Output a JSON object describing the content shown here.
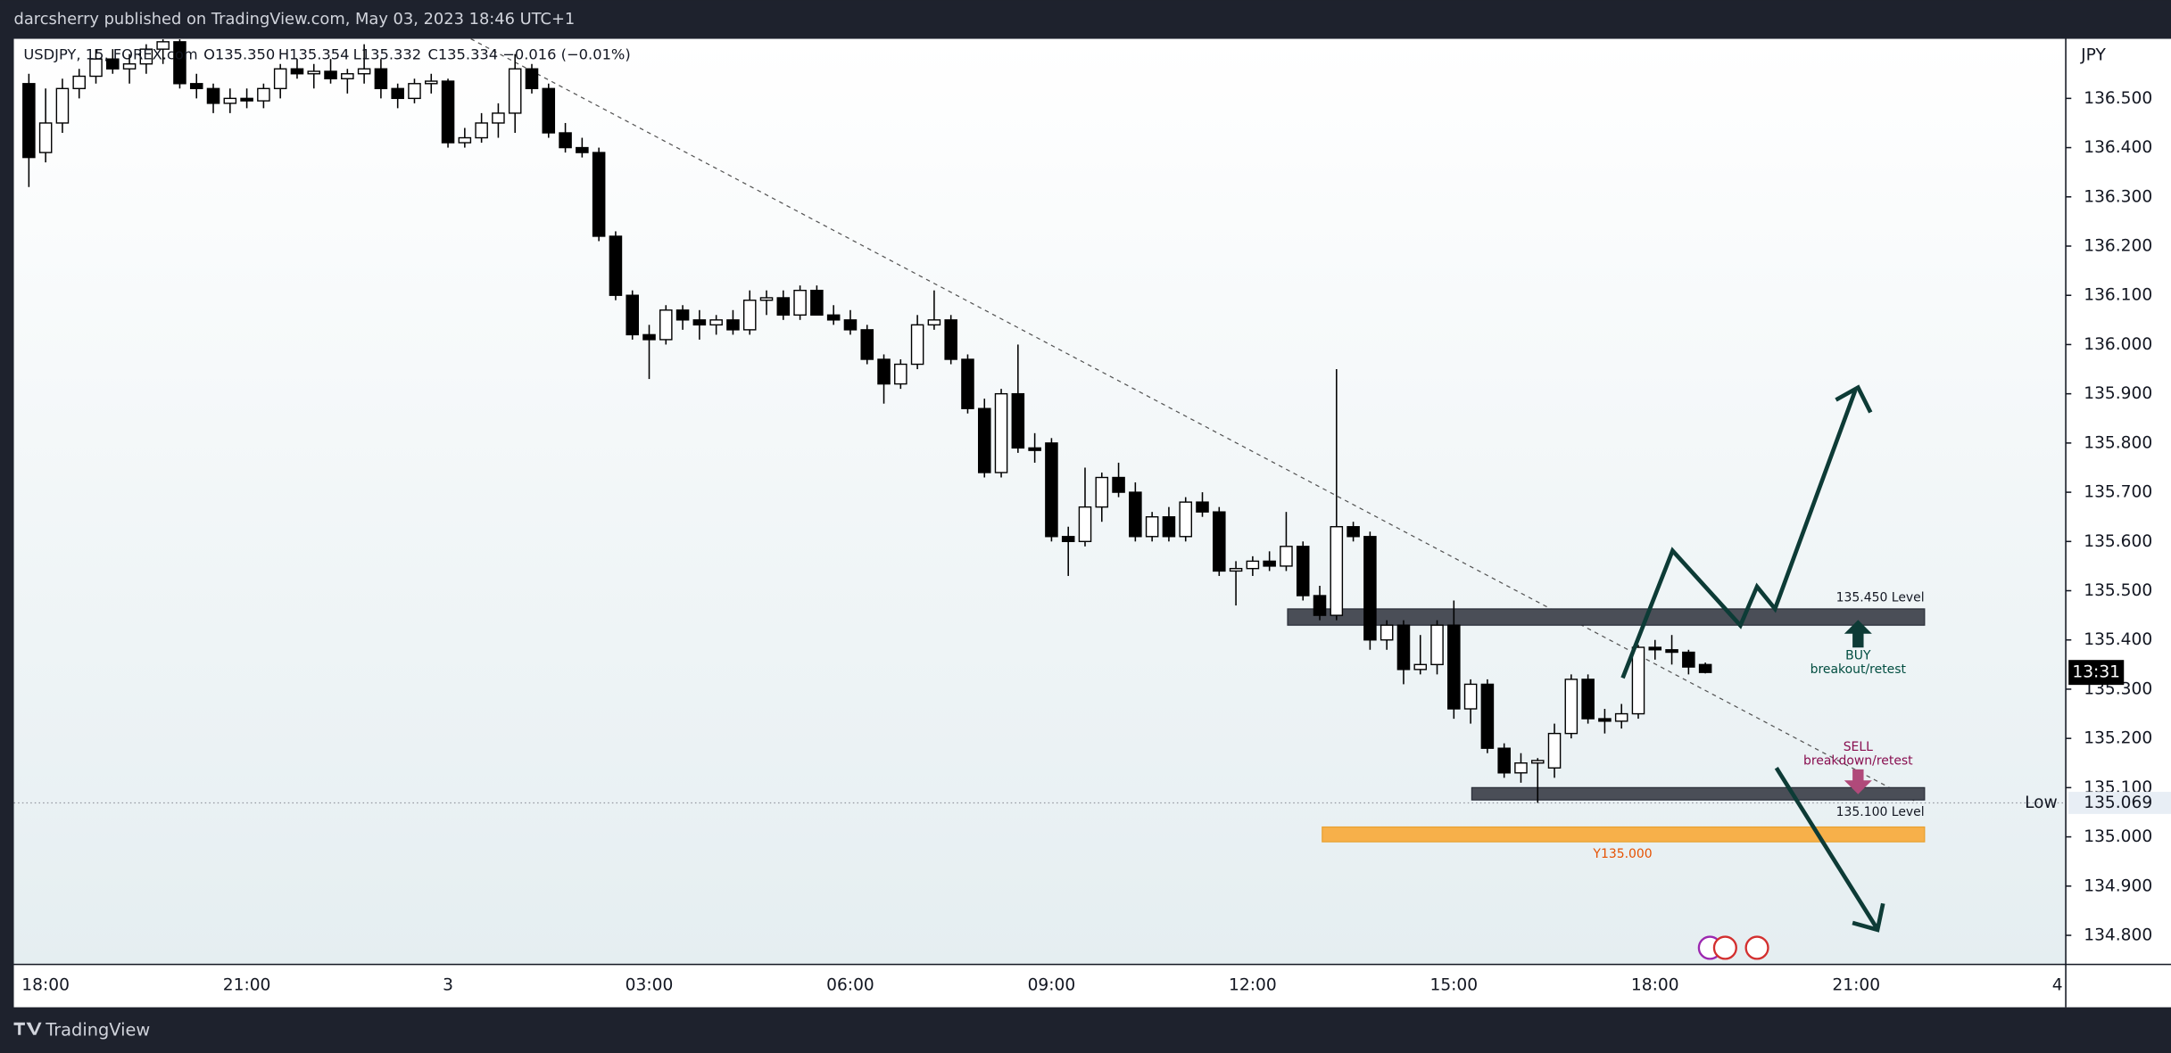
{
  "header": "darcsherry published on TradingView.com, May 03, 2023 18:46 UTC+1",
  "footer": "TradingView",
  "chart_data": {
    "type": "candlestick",
    "symbol": "USDJPY, 15, FOREX.com",
    "ohlc_labels": [
      "O135.350",
      "H135.354",
      "L135.332",
      "C135.334"
    ],
    "change": "−0.016 (−0.01%)",
    "currency": "JPY",
    "countdown": "13:31",
    "up_color": "#ffffff",
    "down_color": "#000000",
    "categories": [
      null,
      "18:00",
      null,
      null,
      null,
      null,
      null,
      null,
      null,
      null,
      null,
      null,
      null,
      "21:00",
      null,
      null,
      null,
      null,
      null,
      null,
      null,
      null,
      null,
      null,
      null,
      "3",
      null,
      null,
      null,
      null,
      null,
      null,
      null,
      null,
      null,
      null,
      null,
      "03:00",
      null,
      null,
      null,
      null,
      null,
      null,
      null,
      null,
      null,
      null,
      null,
      "06:00",
      null,
      null,
      null,
      null,
      null,
      null,
      null,
      null,
      null,
      null,
      null,
      "09:00",
      null,
      null,
      null,
      null,
      null,
      null,
      null,
      null,
      null,
      null,
      null,
      "12:00",
      null,
      null,
      null,
      null,
      null,
      null,
      null,
      null,
      null,
      null,
      null,
      "15:00",
      null,
      null,
      null,
      null,
      null,
      null,
      null,
      null,
      null,
      null,
      null,
      "18:00",
      null,
      null,
      null,
      null,
      null,
      null,
      null,
      null,
      null,
      null,
      null,
      "21:00",
      null,
      null,
      null,
      null,
      null,
      null,
      null,
      null,
      null,
      null,
      null,
      "4"
    ],
    "open": [
      136.53,
      136.39,
      136.45,
      136.52,
      136.545,
      136.58,
      136.56,
      136.57,
      136.6,
      136.615,
      136.53,
      136.52,
      136.49,
      136.5,
      136.495,
      136.52,
      136.56,
      136.55,
      136.555,
      136.54,
      136.55,
      136.56,
      136.52,
      136.5,
      136.53,
      136.535,
      136.41,
      136.42,
      136.45,
      136.47,
      136.56,
      136.52,
      136.43,
      136.4,
      136.39,
      136.22,
      136.1,
      136.02,
      136.01,
      136.07,
      136.05,
      136.04,
      136.05,
      136.03,
      136.09,
      136.095,
      136.06,
      136.11,
      136.06,
      136.05,
      136.03,
      135.97,
      135.92,
      135.96,
      136.04,
      136.05,
      135.97,
      135.87,
      135.74,
      135.9,
      135.79,
      135.8,
      135.61,
      135.6,
      135.67,
      135.73,
      135.7,
      135.61,
      135.65,
      135.61,
      135.68,
      135.66,
      135.54,
      135.545,
      135.56,
      135.55,
      135.59,
      135.49,
      135.45,
      135.63,
      135.61,
      135.4,
      135.43,
      135.34,
      135.35,
      135.43,
      135.26,
      135.31,
      135.18,
      135.13,
      135.15,
      135.14,
      135.21,
      135.32,
      135.24,
      135.235,
      135.25,
      135.385,
      135.38,
      135.375,
      135.35,
      null,
      null,
      null,
      null,
      null,
      null,
      null,
      null,
      null,
      null,
      null,
      null,
      null,
      null,
      null,
      null,
      null,
      null,
      null,
      null,
      null
    ],
    "high": [
      136.55,
      136.52,
      136.54,
      136.56,
      136.6,
      136.6,
      136.59,
      136.61,
      136.62,
      136.62,
      136.55,
      136.53,
      136.52,
      136.52,
      136.53,
      136.57,
      136.58,
      136.57,
      136.58,
      136.56,
      136.61,
      136.58,
      136.53,
      136.54,
      136.55,
      136.54,
      136.44,
      136.47,
      136.49,
      136.59,
      136.57,
      136.53,
      136.45,
      136.42,
      136.4,
      136.23,
      136.11,
      136.04,
      136.08,
      136.08,
      136.07,
      136.06,
      136.07,
      136.11,
      136.11,
      136.11,
      136.12,
      136.12,
      136.08,
      136.07,
      136.04,
      135.98,
      135.97,
      136.06,
      136.11,
      136.06,
      135.98,
      135.89,
      135.91,
      136.0,
      135.82,
      135.81,
      135.63,
      135.75,
      135.74,
      135.76,
      135.72,
      135.66,
      135.67,
      135.69,
      135.7,
      135.67,
      135.56,
      135.57,
      135.58,
      135.66,
      135.6,
      135.51,
      135.95,
      135.64,
      135.62,
      135.44,
      135.44,
      135.41,
      135.44,
      135.48,
      135.32,
      135.32,
      135.19,
      135.17,
      135.16,
      135.23,
      135.33,
      135.33,
      135.26,
      135.27,
      135.39,
      135.4,
      135.41,
      135.38,
      135.354,
      null,
      null,
      null,
      null,
      null,
      null,
      null,
      null,
      null,
      null,
      null,
      null,
      null,
      null,
      null,
      null,
      null,
      null,
      null,
      null,
      null
    ],
    "low": [
      136.32,
      136.37,
      136.43,
      136.5,
      136.53,
      136.55,
      136.53,
      136.55,
      136.57,
      136.52,
      136.5,
      136.47,
      136.47,
      136.48,
      136.48,
      136.5,
      136.54,
      136.52,
      136.53,
      136.51,
      136.53,
      136.5,
      136.48,
      136.49,
      136.51,
      136.4,
      136.4,
      136.41,
      136.42,
      136.43,
      136.51,
      136.42,
      136.39,
      136.38,
      136.21,
      136.09,
      136.01,
      135.93,
      136.0,
      136.03,
      136.01,
      136.02,
      136.02,
      136.02,
      136.06,
      136.05,
      136.05,
      136.06,
      136.04,
      136.02,
      135.96,
      135.88,
      135.91,
      135.95,
      136.03,
      135.96,
      135.86,
      135.73,
      135.73,
      135.78,
      135.76,
      135.6,
      135.53,
      135.59,
      135.64,
      135.69,
      135.6,
      135.6,
      135.6,
      135.6,
      135.65,
      135.53,
      135.47,
      135.53,
      135.54,
      135.54,
      135.48,
      135.44,
      135.44,
      135.6,
      135.38,
      135.38,
      135.31,
      135.33,
      135.33,
      135.24,
      135.23,
      135.17,
      135.12,
      135.11,
      135.069,
      135.12,
      135.2,
      135.23,
      135.21,
      135.22,
      135.24,
      135.36,
      135.35,
      135.33,
      135.332,
      null,
      null,
      null,
      null,
      null,
      null,
      null,
      null,
      null,
      null,
      null,
      null,
      null,
      null,
      null,
      null,
      null,
      null,
      null,
      null,
      null
    ],
    "close": [
      136.38,
      136.45,
      136.52,
      136.545,
      136.58,
      136.56,
      136.57,
      136.6,
      136.615,
      136.53,
      136.52,
      136.49,
      136.5,
      136.495,
      136.52,
      136.56,
      136.55,
      136.555,
      136.54,
      136.55,
      136.56,
      136.52,
      136.5,
      136.53,
      136.535,
      136.41,
      136.42,
      136.45,
      136.47,
      136.56,
      136.52,
      136.43,
      136.4,
      136.39,
      136.22,
      136.1,
      136.02,
      136.01,
      136.07,
      136.05,
      136.04,
      136.05,
      136.03,
      136.09,
      136.095,
      136.06,
      136.11,
      136.06,
      136.05,
      136.03,
      135.97,
      135.92,
      135.96,
      136.04,
      136.05,
      135.97,
      135.87,
      135.74,
      135.9,
      135.79,
      135.785,
      135.61,
      135.6,
      135.67,
      135.73,
      135.7,
      135.61,
      135.65,
      135.61,
      135.68,
      135.66,
      135.54,
      135.545,
      135.56,
      135.55,
      135.59,
      135.49,
      135.45,
      135.63,
      135.61,
      135.4,
      135.43,
      135.34,
      135.35,
      135.43,
      135.26,
      135.31,
      135.18,
      135.13,
      135.15,
      135.155,
      135.21,
      135.32,
      135.24,
      135.235,
      135.25,
      135.385,
      135.38,
      135.375,
      135.345,
      135.334,
      null,
      null,
      null,
      null,
      null,
      null,
      null,
      null,
      null,
      null,
      null,
      null,
      null,
      null,
      null,
      null,
      null,
      null,
      null,
      null,
      null
    ],
    "ylim": [
      134.741,
      136.621
    ],
    "yticks": [
      {
        "value": 134.8,
        "label": "134.800"
      },
      {
        "value": 134.9,
        "label": "134.900"
      },
      {
        "value": 135.0,
        "label": "135.000"
      },
      {
        "value": 135.1,
        "label": "135.100"
      },
      {
        "value": 135.2,
        "label": "135.200"
      },
      {
        "value": 135.3,
        "label": "135.300"
      },
      {
        "value": 135.4,
        "label": "135.400"
      },
      {
        "value": 135.5,
        "label": "135.500"
      },
      {
        "value": 135.6,
        "label": "135.600"
      },
      {
        "value": 135.7,
        "label": "135.700"
      },
      {
        "value": 135.8,
        "label": "135.800"
      },
      {
        "value": 135.9,
        "label": "135.900"
      },
      {
        "value": 136.0,
        "label": "136.000"
      },
      {
        "value": 136.1,
        "label": "136.100"
      },
      {
        "value": 136.2,
        "label": "136.200"
      },
      {
        "value": 136.3,
        "label": "136.300"
      },
      {
        "value": 136.4,
        "label": "136.400"
      },
      {
        "value": 136.5,
        "label": "136.500"
      }
    ],
    "low_marker": {
      "label": "Low",
      "value": 135.069
    },
    "zones": [
      {
        "label": "135.450 Level",
        "top": 135.463,
        "bottom": 135.43,
        "color": "#4a4e57"
      },
      {
        "label": "135.100 Level",
        "top": 135.1,
        "bottom": 135.075,
        "color": "#4a4e57"
      },
      {
        "label": "Y135.000",
        "top": 135.02,
        "bottom": 134.99,
        "color": "#f7b04a"
      }
    ],
    "buy_text": [
      "BUY",
      "breakout/retest"
    ],
    "sell_text": [
      "SELL",
      "breakdown/retest"
    ]
  }
}
